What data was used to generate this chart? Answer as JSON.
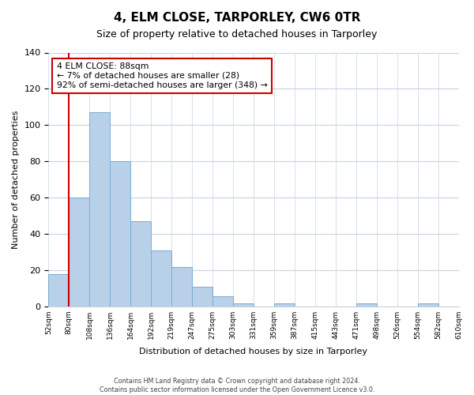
{
  "title": "4, ELM CLOSE, TARPORLEY, CW6 0TR",
  "subtitle": "Size of property relative to detached houses in Tarporley",
  "xlabel": "Distribution of detached houses by size in Tarporley",
  "ylabel": "Number of detached properties",
  "bar_values": [
    18,
    60,
    107,
    80,
    47,
    31,
    22,
    11,
    6,
    2,
    0,
    2,
    0,
    0,
    0,
    2,
    0,
    0,
    2,
    0
  ],
  "tick_labels": [
    "52sqm",
    "80sqm",
    "108sqm",
    "136sqm",
    "164sqm",
    "192sqm",
    "219sqm",
    "247sqm",
    "275sqm",
    "303sqm",
    "331sqm",
    "359sqm",
    "387sqm",
    "415sqm",
    "443sqm",
    "471sqm",
    "498sqm",
    "526sqm",
    "554sqm",
    "582sqm",
    "610sqm"
  ],
  "ylim": [
    0,
    140
  ],
  "yticks": [
    0,
    20,
    40,
    60,
    80,
    100,
    120,
    140
  ],
  "bar_color": "#b8d0e8",
  "bar_edge_color": "#7aadd4",
  "vline_color": "#cc0000",
  "vline_position": 1,
  "annotation_text": "4 ELM CLOSE: 88sqm\n← 7% of detached houses are smaller (28)\n92% of semi-detached houses are larger (348) →",
  "annotation_box_facecolor": "#ffffff",
  "annotation_box_edgecolor": "#cc0000",
  "footer_text": "Contains HM Land Registry data © Crown copyright and database right 2024.\nContains public sector information licensed under the Open Government Licence v3.0.",
  "background_color": "#ffffff",
  "grid_color": "#c8d4e4"
}
